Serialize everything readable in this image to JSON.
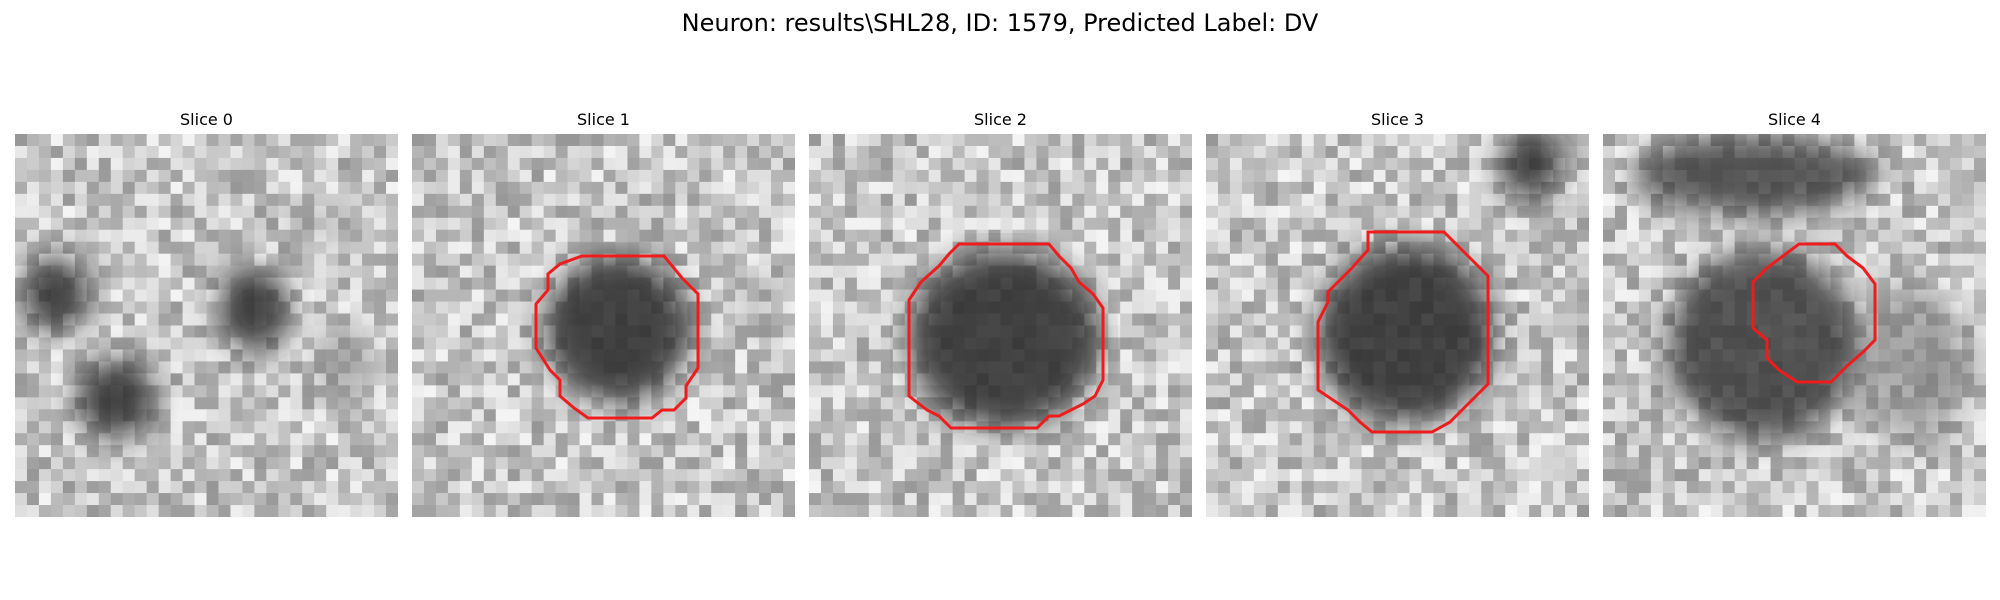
{
  "figure": {
    "title": "Neuron: results\\SHL28, ID: 1579, Predicted Label: DV"
  },
  "colors": {
    "background": "#ffffff",
    "contour": "#ee1c1c",
    "colormap": "grayscale"
  },
  "panels": [
    {
      "title": "Slice 0",
      "has_contour": false
    },
    {
      "title": "Slice 1",
      "has_contour": true
    },
    {
      "title": "Slice 2",
      "has_contour": true
    },
    {
      "title": "Slice 3",
      "has_contour": true
    },
    {
      "title": "Slice 4",
      "has_contour": true
    }
  ]
}
